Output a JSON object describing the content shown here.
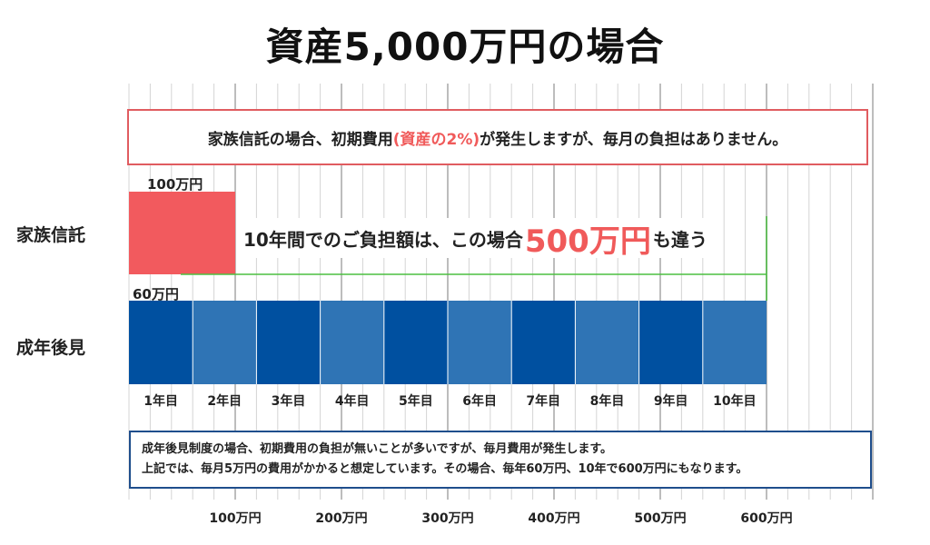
{
  "title": "資産5,000万円の場合",
  "callout_top": {
    "prefix": "家族信託の場合、初期費用",
    "highlight": "(資産の2%)",
    "suffix": "が発生しますが、毎月の負担はありません。"
  },
  "difference": {
    "prefix": "10年間でのご負担額は、この場合",
    "amount": "500万円",
    "suffix": "も違う"
  },
  "rows": {
    "family_trust": "家族信託",
    "guardianship": "成年後見"
  },
  "bar_labels": {
    "family_trust": "100万円",
    "guardianship": "60万円"
  },
  "callout_bottom": {
    "line1": "成年後見制度の場合、初期費用の負担が無いことが多いですが、毎月費用が発生します。",
    "line2": "上記では、毎月5万円の費用がかかると想定しています。その場合、毎年60万円、10年で600万円にもなります。"
  },
  "colors": {
    "family_trust": "#f25a5e",
    "guardian_dark": "#0050a0",
    "guardian_light": "#2f74b5",
    "accent_red": "#f05a5a",
    "green_line": "#4cbf40",
    "grid": "#d4d4d4"
  },
  "chart_data": {
    "type": "bar",
    "orientation": "horizontal",
    "title": "資産5,000万円の場合",
    "x_unit": "万円",
    "xlim": [
      0,
      700
    ],
    "x_ticks": [
      "100万円",
      "200万円",
      "300万円",
      "400万円",
      "500万円",
      "600万円"
    ],
    "x_tick_values": [
      100,
      200,
      300,
      400,
      500,
      600
    ],
    "categories": [
      "家族信託",
      "成年後見"
    ],
    "series": [
      {
        "name": "家族信託",
        "segments": [
          100
        ]
      },
      {
        "name": "成年後見",
        "segments": [
          60,
          60,
          60,
          60,
          60,
          60,
          60,
          60,
          60,
          60
        ],
        "segment_labels": [
          "1年目",
          "2年目",
          "3年目",
          "4年目",
          "5年目",
          "6年目",
          "7年目",
          "8年目",
          "9年目",
          "10年目"
        ]
      }
    ],
    "totals": {
      "家族信託": 100,
      "成年後見": 600
    },
    "difference": 500,
    "grid": true
  }
}
